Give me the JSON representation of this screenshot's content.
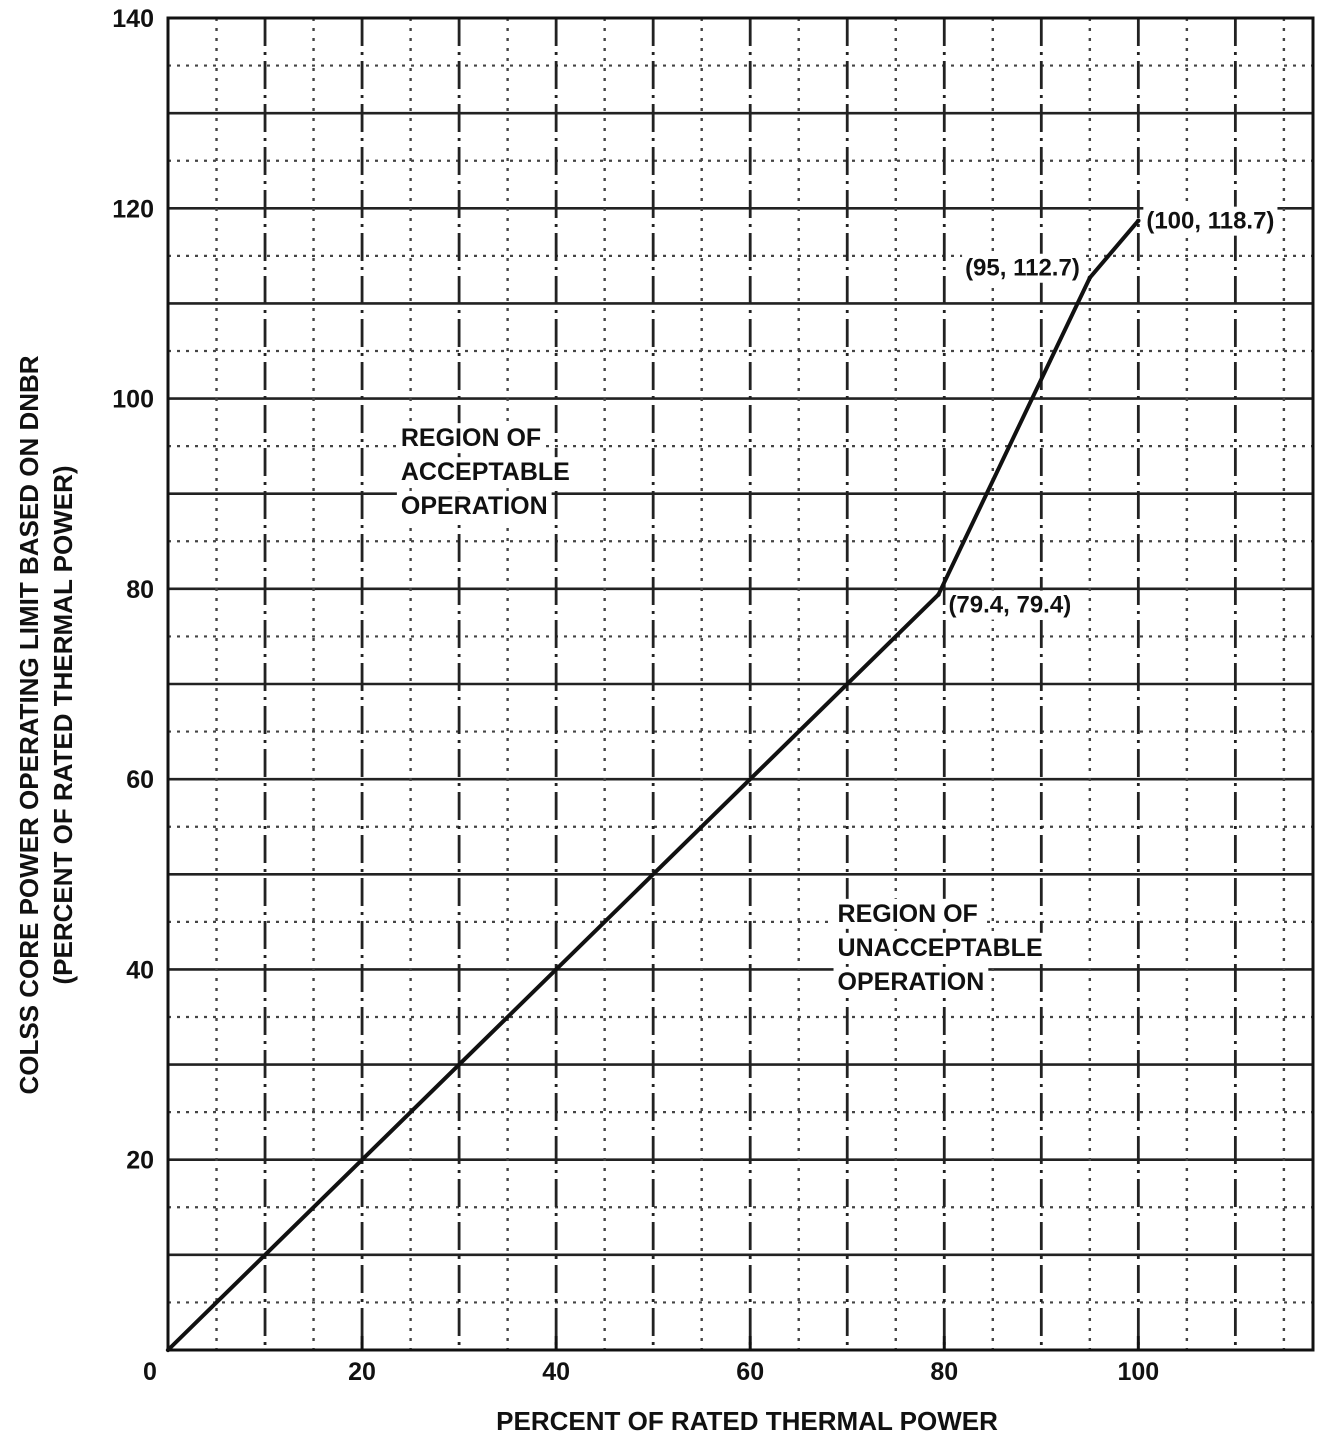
{
  "chart_data": {
    "type": "line",
    "title": "",
    "xlabel": "PERCENT OF RATED THERMAL POWER",
    "ylabel": "COLSS CORE POWER OPERATING LIMIT BASED ON DNBR",
    "ylabel2": "(PERCENT OF RATED THERMAL POWER)",
    "xlim": [
      0,
      118
    ],
    "ylim": [
      0,
      140
    ],
    "x_ticks": [
      0,
      20,
      40,
      60,
      80,
      100
    ],
    "y_ticks": [
      20,
      40,
      60,
      80,
      100,
      120,
      140
    ],
    "grid": true,
    "series": [
      {
        "x": [
          0,
          79.4,
          95,
          100
        ],
        "y": [
          0,
          79.4,
          112.7,
          118.7
        ]
      }
    ],
    "point_labels": [
      {
        "x": 79.4,
        "y": 79.4,
        "text": "(79.4, 79.4)"
      },
      {
        "x": 95,
        "y": 112.7,
        "text": "(95, 112.7)"
      },
      {
        "x": 100,
        "y": 118.7,
        "text": "(100, 118.7)"
      }
    ],
    "regions": [
      {
        "lines": [
          "REGION OF",
          "ACCEPTABLE",
          "OPERATION"
        ],
        "x": 24,
        "y": 95
      },
      {
        "lines": [
          "REGION OF",
          "UNACCEPTABLE",
          "OPERATION"
        ],
        "x": 69,
        "y": 45
      }
    ]
  }
}
